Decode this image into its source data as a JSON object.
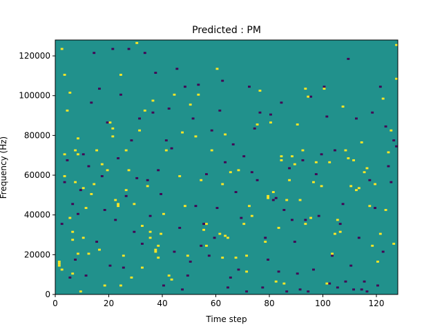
{
  "chart_data": {
    "type": "heatmap",
    "title": "Predicted : PM",
    "xlabel": "Time step",
    "ylabel": "Frequency (Hz)",
    "xlim": [
      0,
      128
    ],
    "ylim": [
      0,
      128000
    ],
    "x_ticks": [
      0,
      20,
      40,
      60,
      80,
      100,
      120
    ],
    "y_ticks": [
      0,
      20000,
      40000,
      60000,
      80000,
      100000,
      120000
    ],
    "y_tick_labels": [
      "0",
      "20000",
      "40000",
      "60000",
      "80000",
      "100000",
      "120000"
    ],
    "grid": false,
    "legend": "none",
    "n_time_steps": 128,
    "n_frequency_bins": 128,
    "bin_width_hz": 1000,
    "values_range": [
      -1,
      1
    ],
    "background_value": 0,
    "colors": {
      "low": "#440154",
      "mid": "#21918c",
      "high": "#fde725"
    },
    "cells_value_1": [
      [
        1,
        14
      ],
      [
        1,
        15
      ],
      [
        1,
        16
      ],
      [
        2,
        12
      ],
      [
        2,
        123
      ],
      [
        3,
        110
      ],
      [
        3,
        70
      ],
      [
        3,
        59
      ],
      [
        4,
        92
      ],
      [
        5,
        101
      ],
      [
        5,
        38
      ],
      [
        6,
        10
      ],
      [
        6,
        27
      ],
      [
        6,
        31
      ],
      [
        7,
        56
      ],
      [
        7,
        72
      ],
      [
        8,
        78
      ],
      [
        8,
        70
      ],
      [
        8,
        20
      ],
      [
        9,
        1
      ],
      [
        10,
        53
      ],
      [
        10,
        28
      ],
      [
        11,
        43
      ],
      [
        12,
        20
      ],
      [
        13,
        50
      ],
      [
        14,
        55
      ],
      [
        15,
        72
      ],
      [
        16,
        22
      ],
      [
        17,
        65
      ],
      [
        18,
        4
      ],
      [
        19,
        62
      ],
      [
        20,
        86
      ],
      [
        21,
        83
      ],
      [
        21,
        79
      ],
      [
        22,
        47
      ],
      [
        23,
        45
      ],
      [
        23,
        44
      ],
      [
        24,
        4
      ],
      [
        24,
        110
      ],
      [
        25,
        19
      ],
      [
        26,
        72
      ],
      [
        26,
        52
      ],
      [
        27,
        62
      ],
      [
        28,
        8
      ],
      [
        29,
        45
      ],
      [
        30,
        126
      ],
      [
        31,
        82
      ],
      [
        32,
        13
      ],
      [
        32,
        34
      ],
      [
        33,
        92
      ],
      [
        34,
        54
      ],
      [
        35,
        28
      ],
      [
        35,
        31
      ],
      [
        36,
        97
      ],
      [
        37,
        21
      ],
      [
        37,
        22
      ],
      [
        38,
        18
      ],
      [
        38,
        24
      ],
      [
        39,
        30
      ],
      [
        40,
        40
      ],
      [
        41,
        72
      ],
      [
        42,
        9
      ],
      [
        43,
        7
      ],
      [
        44,
        100
      ],
      [
        46,
        59
      ],
      [
        47,
        81
      ],
      [
        48,
        44
      ],
      [
        49,
        19
      ],
      [
        50,
        95
      ],
      [
        52,
        79
      ],
      [
        53,
        100
      ],
      [
        54,
        57
      ],
      [
        55,
        32
      ],
      [
        56,
        35
      ],
      [
        56,
        24
      ],
      [
        58,
        72
      ],
      [
        60,
        113
      ],
      [
        61,
        30
      ],
      [
        62,
        55
      ],
      [
        62,
        18
      ],
      [
        63,
        80
      ],
      [
        63,
        29
      ],
      [
        64,
        28
      ],
      [
        65,
        61
      ],
      [
        67,
        18
      ],
      [
        68,
        62
      ],
      [
        70,
        35
      ],
      [
        71,
        11
      ],
      [
        71,
        19
      ],
      [
        72,
        44
      ],
      [
        73,
        39
      ],
      [
        75,
        85
      ],
      [
        76,
        102
      ],
      [
        78,
        26
      ],
      [
        79,
        48
      ],
      [
        79,
        49
      ],
      [
        80,
        86
      ],
      [
        81,
        51
      ],
      [
        82,
        6
      ],
      [
        83,
        33
      ],
      [
        84,
        67
      ],
      [
        84,
        69
      ],
      [
        85,
        5
      ],
      [
        86,
        47
      ],
      [
        87,
        57
      ],
      [
        88,
        69
      ],
      [
        89,
        65
      ],
      [
        90,
        85
      ],
      [
        91,
        47
      ],
      [
        92,
        72
      ],
      [
        93,
        103
      ],
      [
        93,
        35
      ],
      [
        94,
        99
      ],
      [
        95,
        38
      ],
      [
        96,
        56
      ],
      [
        97,
        66
      ],
      [
        99,
        54
      ],
      [
        100,
        103
      ],
      [
        101,
        5
      ],
      [
        102,
        66
      ],
      [
        103,
        20
      ],
      [
        104,
        30
      ],
      [
        105,
        37
      ],
      [
        106,
        31
      ],
      [
        107,
        94
      ],
      [
        108,
        72
      ],
      [
        109,
        68
      ],
      [
        110,
        54
      ],
      [
        111,
        67
      ],
      [
        112,
        52
      ],
      [
        113,
        53
      ],
      [
        114,
        76
      ],
      [
        115,
        61
      ],
      [
        116,
        63
      ],
      [
        117,
        44
      ],
      [
        118,
        24
      ],
      [
        119,
        55
      ],
      [
        120,
        16
      ],
      [
        121,
        30
      ],
      [
        122,
        98
      ],
      [
        123,
        42
      ],
      [
        124,
        71
      ],
      [
        125,
        82
      ],
      [
        126,
        25
      ],
      [
        127,
        108
      ],
      [
        127,
        125
      ]
    ],
    "cells_value_-1": [
      [
        2,
        35
      ],
      [
        3,
        56
      ],
      [
        4,
        67
      ],
      [
        5,
        8
      ],
      [
        6,
        45
      ],
      [
        7,
        17
      ],
      [
        8,
        40
      ],
      [
        9,
        52
      ],
      [
        10,
        70
      ],
      [
        11,
        9
      ],
      [
        12,
        64
      ],
      [
        13,
        96
      ],
      [
        14,
        121
      ],
      [
        15,
        26
      ],
      [
        16,
        103
      ],
      [
        17,
        59
      ],
      [
        18,
        42
      ],
      [
        19,
        86
      ],
      [
        20,
        14
      ],
      [
        21,
        123
      ],
      [
        22,
        37
      ],
      [
        23,
        68
      ],
      [
        24,
        100
      ],
      [
        25,
        13
      ],
      [
        26,
        49
      ],
      [
        27,
        123
      ],
      [
        28,
        77
      ],
      [
        29,
        31
      ],
      [
        30,
        58
      ],
      [
        31,
        88
      ],
      [
        32,
        25
      ],
      [
        33,
        121
      ],
      [
        34,
        57
      ],
      [
        35,
        39
      ],
      [
        36,
        91
      ],
      [
        37,
        111
      ],
      [
        38,
        62
      ],
      [
        39,
        50
      ],
      [
        40,
        4
      ],
      [
        41,
        77
      ],
      [
        42,
        93
      ],
      [
        43,
        73
      ],
      [
        44,
        21
      ],
      [
        45,
        113
      ],
      [
        46,
        33
      ],
      [
        47,
        2
      ],
      [
        48,
        104
      ],
      [
        49,
        9
      ],
      [
        50,
        16
      ],
      [
        51,
        88
      ],
      [
        52,
        44
      ],
      [
        53,
        105
      ],
      [
        54,
        24
      ],
      [
        55,
        35
      ],
      [
        56,
        60
      ],
      [
        57,
        19
      ],
      [
        58,
        82
      ],
      [
        59,
        28
      ],
      [
        60,
        43
      ],
      [
        61,
        92
      ],
      [
        62,
        107
      ],
      [
        63,
        66
      ],
      [
        64,
        3
      ],
      [
        65,
        8
      ],
      [
        66,
        75
      ],
      [
        67,
        51
      ],
      [
        68,
        12
      ],
      [
        69,
        38
      ],
      [
        70,
        69
      ],
      [
        71,
        1
      ],
      [
        72,
        104
      ],
      [
        73,
        61
      ],
      [
        74,
        83
      ],
      [
        75,
        57
      ],
      [
        76,
        91
      ],
      [
        77,
        3
      ],
      [
        78,
        28
      ],
      [
        79,
        17
      ],
      [
        80,
        90
      ],
      [
        81,
        47
      ],
      [
        82,
        48
      ],
      [
        83,
        11
      ],
      [
        84,
        96
      ],
      [
        85,
        42
      ],
      [
        86,
        1
      ],
      [
        87,
        63
      ],
      [
        88,
        37
      ],
      [
        89,
        26
      ],
      [
        90,
        10
      ],
      [
        91,
        2
      ],
      [
        92,
        67
      ],
      [
        93,
        37
      ],
      [
        94,
        1
      ],
      [
        95,
        99
      ],
      [
        96,
        12
      ],
      [
        97,
        60
      ],
      [
        98,
        39
      ],
      [
        99,
        70
      ],
      [
        100,
        104
      ],
      [
        101,
        89
      ],
      [
        102,
        5
      ],
      [
        103,
        19
      ],
      [
        104,
        72
      ],
      [
        105,
        3
      ],
      [
        106,
        35
      ],
      [
        107,
        45
      ],
      [
        108,
        6
      ],
      [
        109,
        118
      ],
      [
        110,
        14
      ],
      [
        111,
        2
      ],
      [
        112,
        88
      ],
      [
        113,
        28
      ],
      [
        114,
        2
      ],
      [
        115,
        6
      ],
      [
        116,
        1
      ],
      [
        117,
        57
      ],
      [
        118,
        91
      ],
      [
        119,
        43
      ],
      [
        120,
        4
      ],
      [
        121,
        104
      ],
      [
        122,
        21
      ],
      [
        123,
        84
      ],
      [
        124,
        64
      ],
      [
        125,
        56
      ],
      [
        126,
        77
      ],
      [
        127,
        74
      ]
    ]
  }
}
